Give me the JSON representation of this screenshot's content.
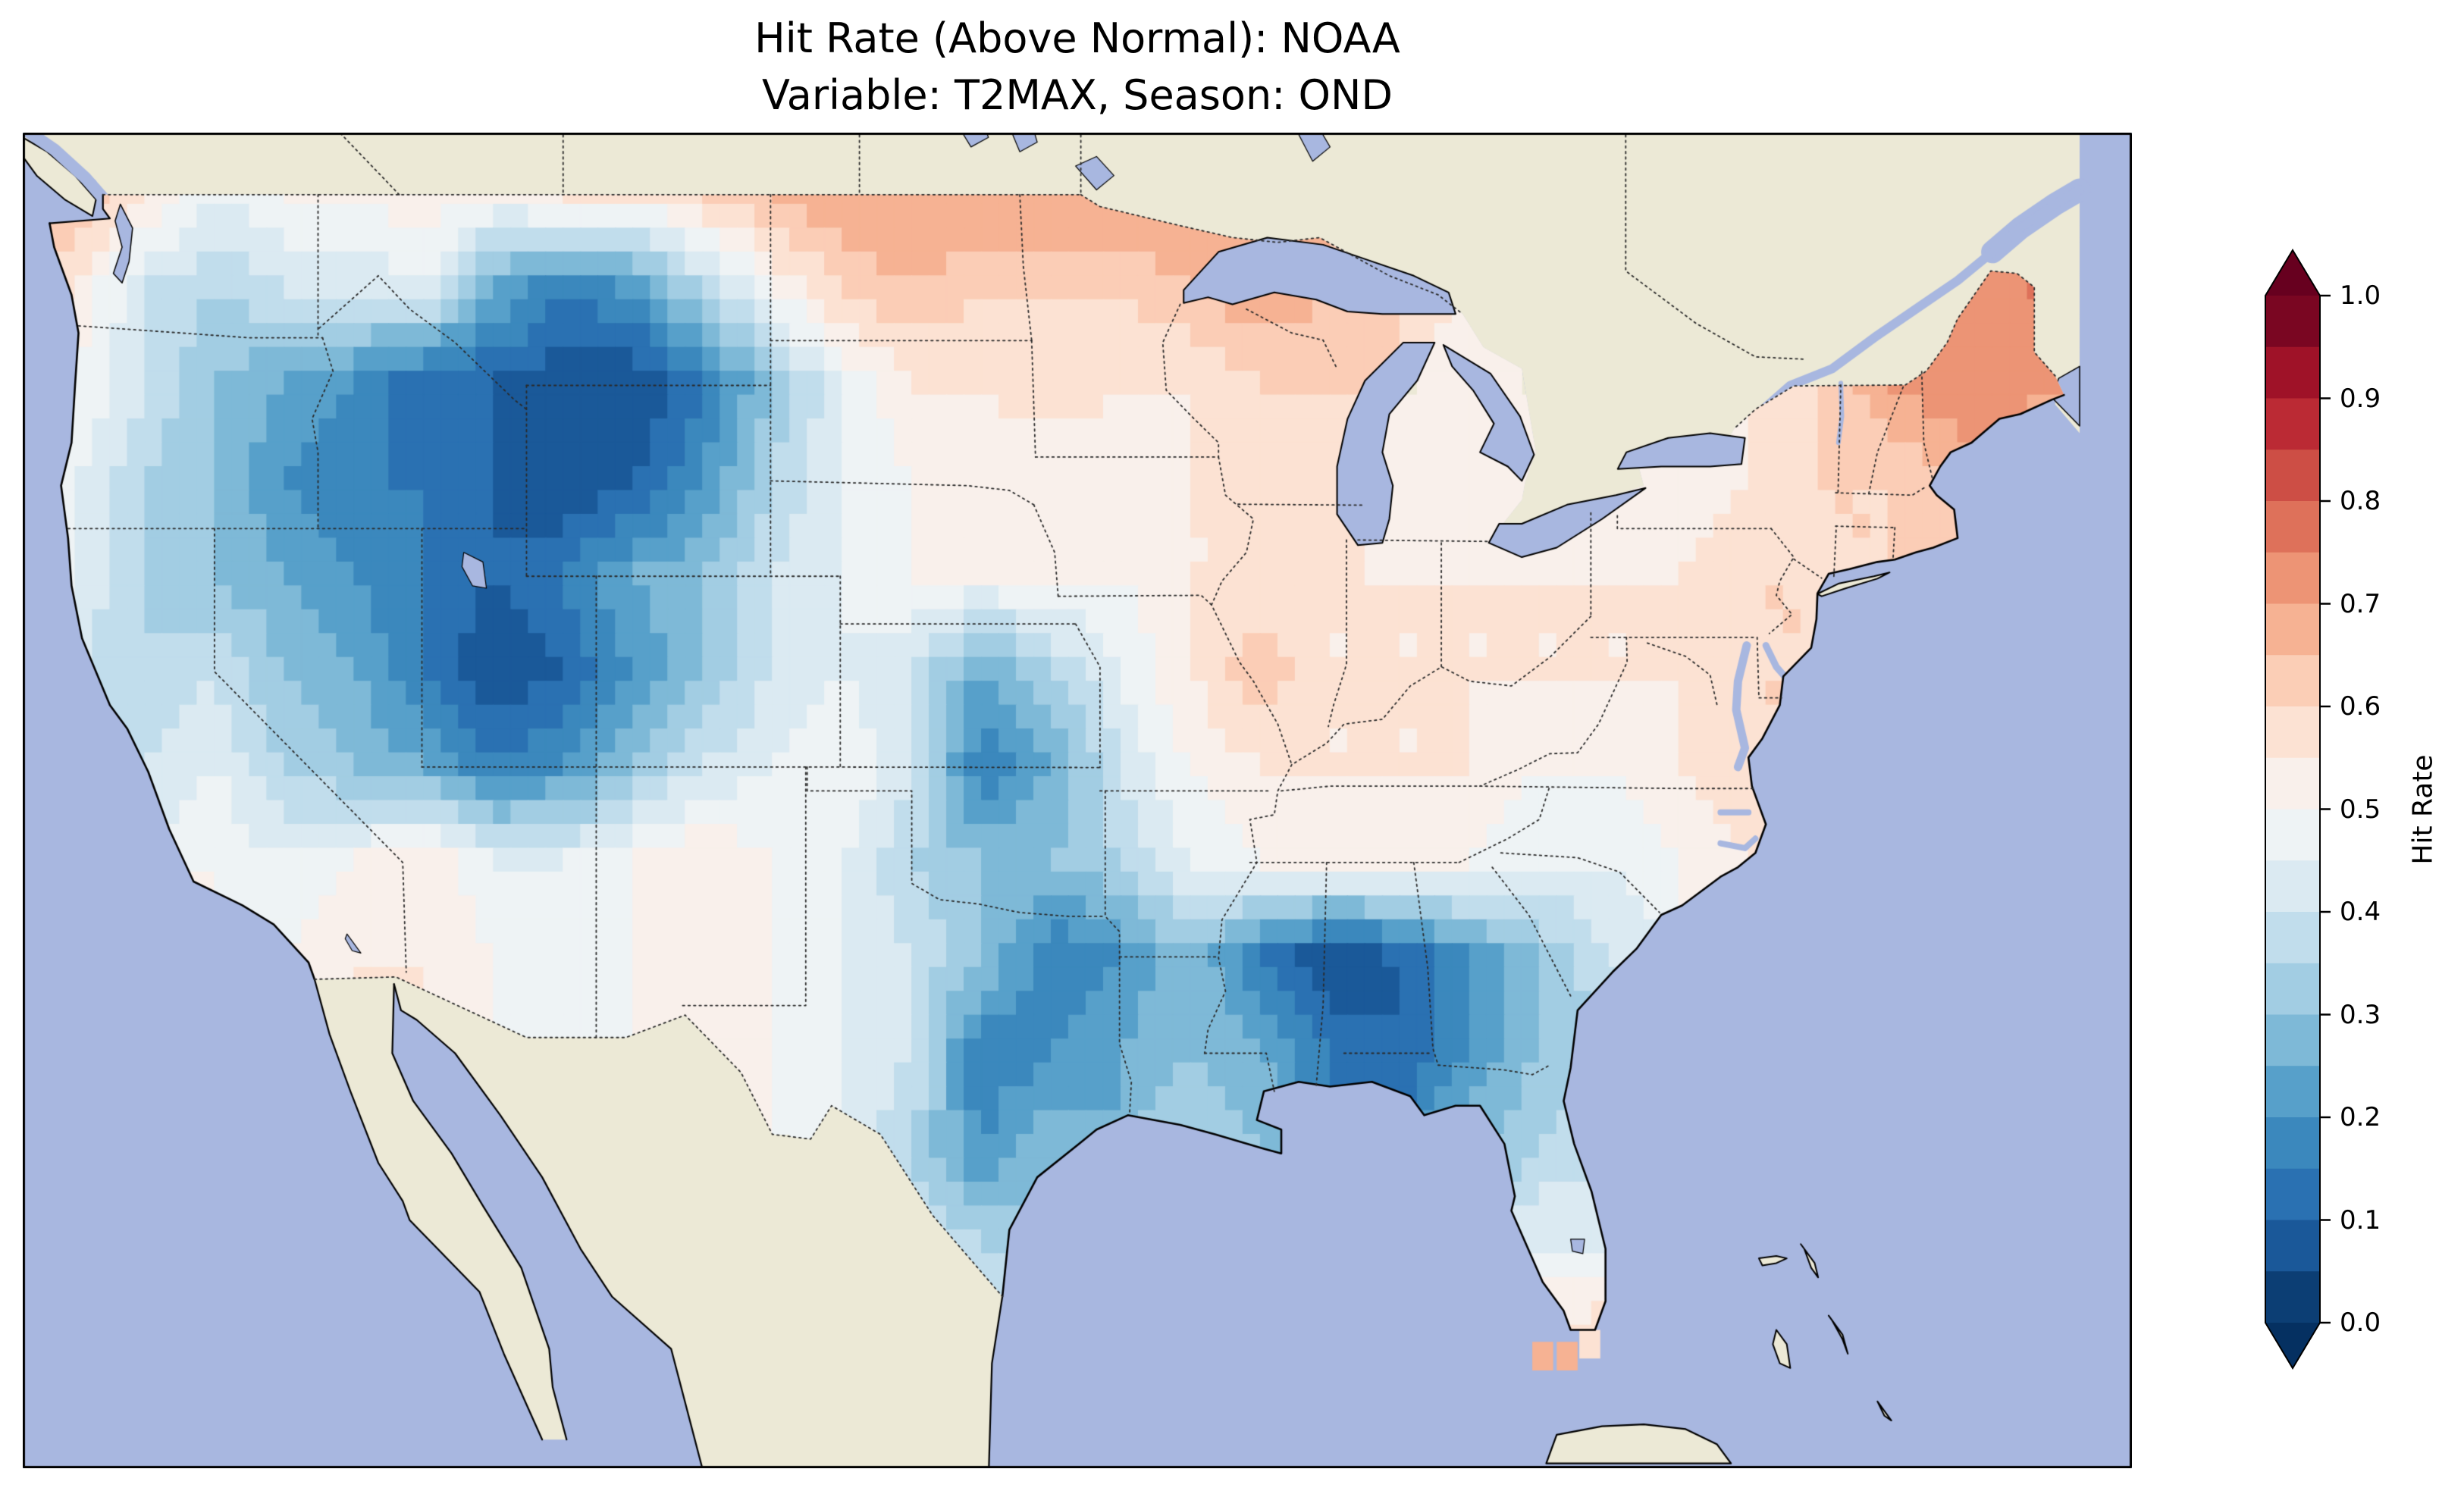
{
  "title": {
    "line1": "Hit Rate (Above Normal): NOAA",
    "line2": "Variable: T2MAX, Season: OND"
  },
  "colorbar": {
    "label": "Hit Rate",
    "ticks": [
      {
        "label": "1.0",
        "value": 1.0
      },
      {
        "label": "0.9",
        "value": 0.9
      },
      {
        "label": "0.8",
        "value": 0.8
      },
      {
        "label": "0.7",
        "value": 0.7
      },
      {
        "label": "0.6",
        "value": 0.6
      },
      {
        "label": "0.5",
        "value": 0.5
      },
      {
        "label": "0.4",
        "value": 0.4
      },
      {
        "label": "0.3",
        "value": 0.3
      },
      {
        "label": "0.2",
        "value": 0.2
      },
      {
        "label": "0.1",
        "value": 0.1
      },
      {
        "label": "0.0",
        "value": 0.0
      }
    ],
    "n_segments": 20,
    "over_color": "#67001f",
    "under_color": "#053061"
  },
  "colors": {
    "background": "#ffffff",
    "ocean": "#a8b7e0",
    "land": "#ece9d6",
    "coastline": "#000000",
    "border": "#2a2a2a",
    "frame": "#000000",
    "colormap_name": "RdBu_r",
    "colormap_anchors": [
      {
        "v": 0.0,
        "c": "#053061"
      },
      {
        "v": 0.1,
        "c": "#2166ac"
      },
      {
        "v": 0.2,
        "c": "#4393c3"
      },
      {
        "v": 0.3,
        "c": "#92c5de"
      },
      {
        "v": 0.4,
        "c": "#d1e5f0"
      },
      {
        "v": 0.5,
        "c": "#f7f7f7"
      },
      {
        "v": 0.6,
        "c": "#fddbc7"
      },
      {
        "v": 0.7,
        "c": "#f4a582"
      },
      {
        "v": 0.8,
        "c": "#d6604d"
      },
      {
        "v": 0.9,
        "c": "#b2182b"
      },
      {
        "v": 1.0,
        "c": "#67001f"
      }
    ]
  },
  "chart_data": {
    "type": "heatmap",
    "title": "Hit Rate (Above Normal): NOAA\nVariable: T2MAX, Season: OND",
    "source": "NOAA",
    "variable": "T2MAX",
    "season": "OND",
    "metric": "Hit Rate (Above Normal)",
    "colorbar_label": "Hit Rate",
    "value_range": [
      0.0,
      1.0
    ],
    "value_bin_size": 0.05,
    "extent": {
      "lon": [
        -125.5,
        -65.0
      ],
      "lat": [
        22.3,
        50.3
      ]
    },
    "grid": {
      "note": "Approximate hit-rate values over CONUS on a 2-degree grid, read from the map; null = outside data mask",
      "lon_start": -124,
      "lon_step": 2,
      "lat_start": 49,
      "lat_step": -2,
      "values": [
        [
          0.65,
          0.55,
          0.45,
          0.5,
          0.5,
          0.55,
          0.5,
          0.55,
          0.55,
          0.6,
          0.65,
          0.7,
          0.7,
          0.7,
          0.7,
          0.7,
          0.7,
          0.65,
          0.65,
          null,
          null,
          null,
          null,
          null,
          null,
          null,
          null,
          0.7,
          0.75
        ],
        [
          0.55,
          0.4,
          0.35,
          0.4,
          0.4,
          0.45,
          0.25,
          0.15,
          0.2,
          0.35,
          0.5,
          0.6,
          0.65,
          0.6,
          0.6,
          0.6,
          0.65,
          0.7,
          0.65,
          0.6,
          null,
          null,
          null,
          null,
          null,
          null,
          null,
          0.7,
          0.75
        ],
        [
          0.5,
          0.4,
          0.3,
          0.25,
          0.2,
          0.1,
          0.1,
          0.05,
          0.05,
          0.15,
          0.3,
          0.45,
          0.55,
          0.55,
          0.6,
          0.55,
          0.55,
          0.6,
          0.6,
          null,
          0.5,
          null,
          null,
          null,
          0.55,
          0.6,
          0.7,
          0.75,
          0.7
        ],
        [
          0.45,
          0.35,
          0.3,
          0.2,
          0.15,
          0.15,
          0.1,
          0.05,
          0.1,
          0.2,
          0.35,
          0.45,
          0.5,
          0.5,
          0.5,
          0.5,
          0.55,
          0.55,
          0.6,
          0.5,
          0.5,
          0.5,
          null,
          0.5,
          0.55,
          0.6,
          0.6,
          0.65,
          null
        ],
        [
          0.45,
          0.35,
          0.3,
          0.25,
          0.2,
          0.15,
          0.1,
          0.15,
          0.25,
          0.3,
          0.4,
          0.45,
          0.5,
          0.5,
          0.5,
          0.5,
          0.55,
          0.55,
          0.55,
          0.55,
          0.55,
          0.55,
          0.55,
          0.55,
          0.6,
          0.6,
          0.6,
          0.6,
          null
        ],
        [
          null,
          0.35,
          0.4,
          0.3,
          0.25,
          0.15,
          0.05,
          0.1,
          0.2,
          0.3,
          0.4,
          0.45,
          0.4,
          0.25,
          0.35,
          0.45,
          0.55,
          0.65,
          0.55,
          0.55,
          0.55,
          0.55,
          0.55,
          0.55,
          0.6,
          0.6,
          null,
          null,
          null
        ],
        [
          null,
          0.4,
          0.45,
          0.35,
          0.3,
          0.25,
          0.15,
          0.2,
          0.3,
          0.4,
          0.45,
          0.5,
          0.4,
          0.15,
          0.25,
          0.4,
          0.5,
          0.55,
          0.55,
          0.55,
          0.55,
          0.5,
          0.5,
          0.55,
          0.6,
          null,
          null,
          null,
          null
        ],
        [
          null,
          null,
          0.5,
          0.45,
          0.5,
          0.55,
          0.45,
          0.45,
          0.5,
          0.55,
          0.5,
          0.45,
          0.35,
          0.3,
          0.3,
          0.35,
          0.45,
          0.5,
          0.5,
          0.5,
          0.5,
          0.45,
          0.45,
          0.5,
          0.55,
          null,
          null,
          null,
          null
        ],
        [
          null,
          null,
          null,
          0.5,
          0.55,
          0.55,
          0.5,
          0.45,
          0.5,
          0.5,
          0.5,
          0.45,
          0.4,
          0.3,
          0.15,
          0.2,
          0.3,
          0.15,
          0.05,
          0.1,
          0.2,
          0.3,
          0.4,
          null,
          null,
          null,
          null,
          null,
          null
        ],
        [
          null,
          null,
          null,
          null,
          null,
          null,
          null,
          null,
          null,
          0.5,
          0.5,
          0.45,
          0.4,
          0.15,
          0.2,
          0.25,
          0.3,
          0.25,
          0.15,
          0.1,
          0.2,
          0.3,
          null,
          null,
          null,
          null,
          null,
          null,
          null
        ],
        [
          null,
          null,
          null,
          null,
          null,
          null,
          null,
          null,
          null,
          null,
          null,
          0.45,
          0.35,
          0.2,
          0.3,
          null,
          0.35,
          0.3,
          null,
          null,
          0.3,
          0.35,
          0.4,
          null,
          null,
          null,
          null,
          null,
          null
        ],
        [
          null,
          null,
          null,
          null,
          null,
          null,
          null,
          null,
          null,
          null,
          null,
          null,
          0.4,
          0.35,
          null,
          null,
          null,
          null,
          null,
          null,
          null,
          0.45,
          0.45,
          null,
          null,
          null,
          null,
          null,
          null
        ],
        [
          null,
          null,
          null,
          null,
          null,
          null,
          null,
          null,
          null,
          null,
          null,
          null,
          null,
          0.4,
          null,
          null,
          null,
          null,
          null,
          null,
          null,
          0.55,
          0.6,
          null,
          null,
          null,
          null,
          null,
          null
        ]
      ]
    },
    "extra_cells": [
      {
        "lon": -81.9,
        "lat": 24.65,
        "value": 0.65,
        "size": 0.6
      },
      {
        "lon": -81.2,
        "lat": 24.65,
        "value": 0.65,
        "size": 0.6
      },
      {
        "lon": -80.55,
        "lat": 24.9,
        "value": 0.6,
        "size": 0.6
      }
    ]
  }
}
